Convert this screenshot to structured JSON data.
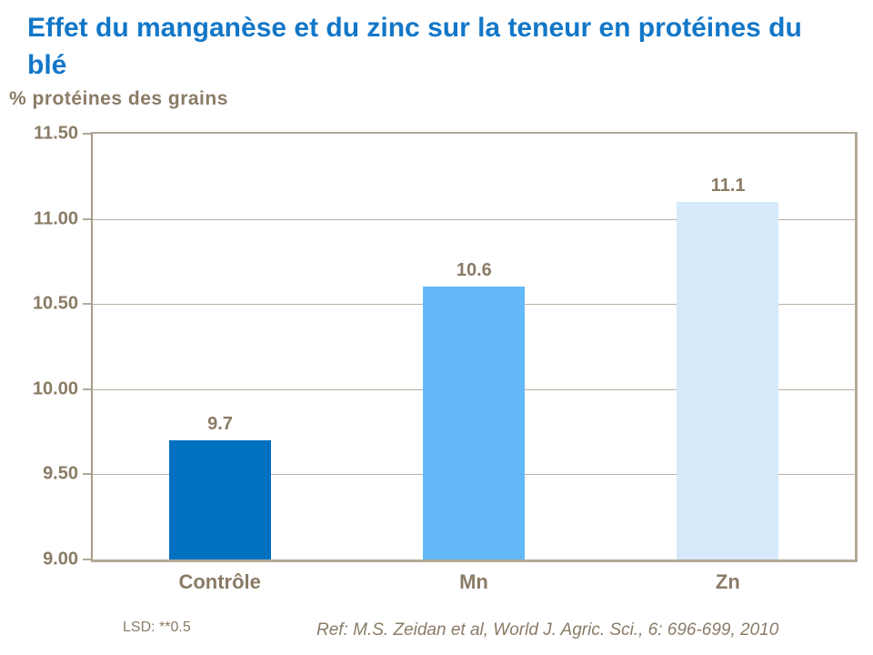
{
  "slide": {
    "title": "Effet du manganèse et du zinc sur la teneur en protéines du blé",
    "lsd_note": "LSD: **0.5",
    "reference": "Ref: M.S. Zeidan et al, World J. Agric. Sci., 6: 696-699, 2010"
  },
  "chart_data": {
    "type": "bar",
    "title": "Effet du manganèse et du zinc sur la teneur en protéines du blé",
    "ylabel": "% protéines des grains",
    "xlabel": "",
    "categories": [
      "Contrôle",
      "Mn",
      "Zn"
    ],
    "values": [
      9.7,
      10.6,
      11.1
    ],
    "value_labels": [
      "9.7",
      "10.6",
      "11.1"
    ],
    "bar_colors": [
      "#0070C0",
      "#65B9FA",
      "#D6E9FB"
    ],
    "ylim": [
      9.0,
      11.5
    ],
    "yticks": [
      9.0,
      9.5,
      10.0,
      10.5,
      11.0,
      11.5
    ],
    "ytick_labels": [
      "9.00",
      "9.50",
      "10.00",
      "10.50",
      "11.00",
      "11.50"
    ],
    "grid": true,
    "legend": false,
    "annotations": [
      "LSD: **0.5",
      "Ref: M.S. Zeidan et al, World J. Agric. Sci., 6: 696-699, 2010"
    ]
  },
  "colors": {
    "title_blue": "#1277C8",
    "axis_text_brown": "#8A7B66",
    "gridline": "#BBB0A2",
    "axis_line": "#B3A998",
    "background": "#FFFFFF"
  }
}
